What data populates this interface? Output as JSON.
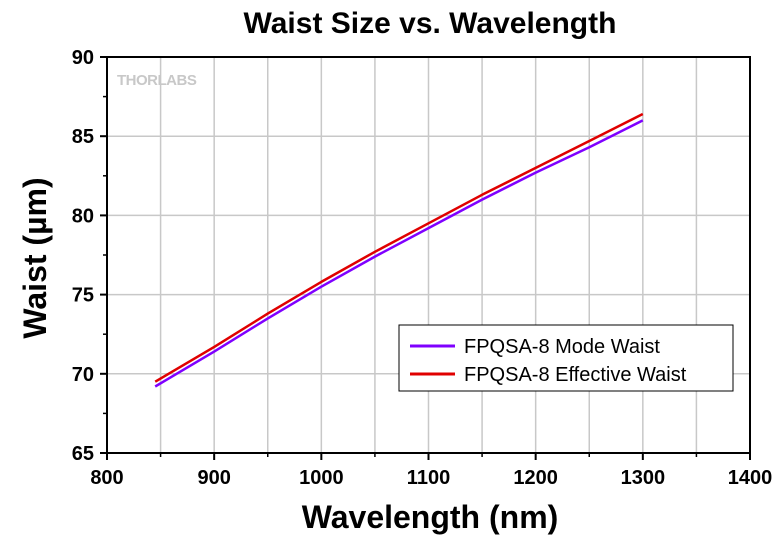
{
  "chart_data": {
    "type": "line",
    "title": "Waist Size vs. Wavelength",
    "xlabel": "Wavelength (nm)",
    "ylabel": "Waist (µm)",
    "xlim": [
      800,
      1400
    ],
    "ylim": [
      65,
      90
    ],
    "xticks": [
      800,
      900,
      1000,
      1100,
      1200,
      1300,
      1400
    ],
    "yticks": [
      65,
      70,
      75,
      80,
      85,
      90
    ],
    "grid": true,
    "legend_position": "lower-right",
    "watermark": "THORLABS",
    "series": [
      {
        "name": "FPQSA-8 Mode Waist",
        "color": "#7f00ff",
        "x": [
          845,
          900,
          950,
          1000,
          1050,
          1100,
          1150,
          1200,
          1250,
          1300
        ],
        "y": [
          69.2,
          71.4,
          73.5,
          75.5,
          77.4,
          79.2,
          81.0,
          82.7,
          84.3,
          86.0
        ]
      },
      {
        "name": "FPQSA-8 Effective Waist",
        "color": "#e00000",
        "x": [
          845,
          900,
          950,
          1000,
          1050,
          1100,
          1150,
          1200,
          1250,
          1300
        ],
        "y": [
          69.5,
          71.7,
          73.8,
          75.8,
          77.7,
          79.5,
          81.3,
          83.0,
          84.7,
          86.4
        ]
      }
    ]
  }
}
